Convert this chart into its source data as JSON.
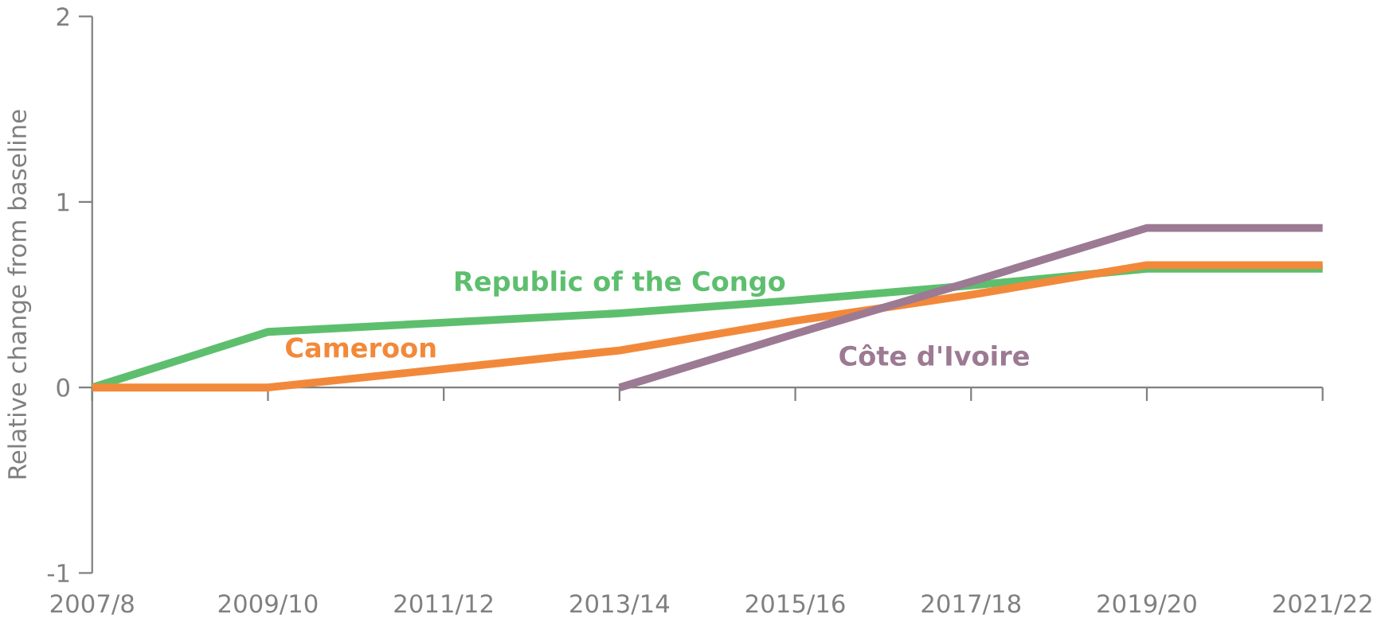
{
  "chart_data": {
    "type": "line",
    "ylabel": "Relative change from baseline",
    "categories": [
      "2007/8",
      "2009/10",
      "2011/12",
      "2013/14",
      "2015/16",
      "2017/18",
      "2019/20",
      "2021/22"
    ],
    "ylim": [
      -1,
      2
    ],
    "yticks": [
      -1,
      0,
      1,
      2
    ],
    "legend": false,
    "marker": "none",
    "line_style": "solid",
    "series": [
      {
        "name": "Republic of the Congo",
        "color": "#5dbf6e",
        "values": [
          0,
          0.3,
          0.35,
          0.4,
          0.47,
          0.55,
          0.64,
          0.64
        ]
      },
      {
        "name": "Cameroon",
        "color": "#f2893a",
        "values": [
          0,
          0,
          0.1,
          0.2,
          0.36,
          0.5,
          0.66,
          0.66
        ]
      },
      {
        "name": "Côte d'Ivoire",
        "color": "#9c7a93",
        "values": [
          null,
          null,
          null,
          0,
          0.29,
          0.57,
          0.86,
          0.86
        ]
      }
    ]
  }
}
